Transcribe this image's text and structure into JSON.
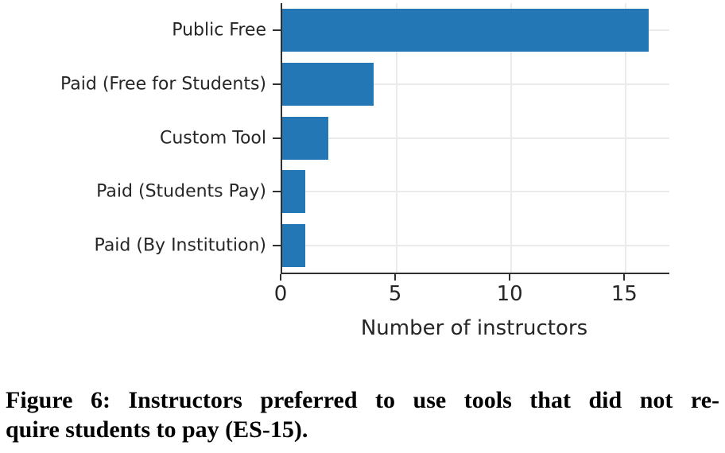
{
  "chart_data": {
    "type": "bar",
    "orientation": "horizontal",
    "categories": [
      "Public Free",
      "Paid (Free for Students)",
      "Custom Tool",
      "Paid (Students Pay)",
      "Paid (By Institution)"
    ],
    "values": [
      16,
      4,
      2,
      1,
      1
    ],
    "title": "",
    "xlabel": "Number of instructors",
    "ylabel": "",
    "xlim": [
      0,
      16.9
    ],
    "x_ticks": [
      0,
      5,
      10,
      15
    ],
    "grid": true,
    "legend": false,
    "bar_color": "#2277b4"
  },
  "colors": {
    "bar": "#2277b4",
    "grid": "#ebebeb",
    "spine": "#303030",
    "axis_text": "#262626",
    "caption_text": "#000000",
    "background": "#ffffff"
  },
  "caption": {
    "line1": "Figure 6: Instructors preferred to use tools that did not re-",
    "line2": "quire students to pay (ES-15)."
  }
}
